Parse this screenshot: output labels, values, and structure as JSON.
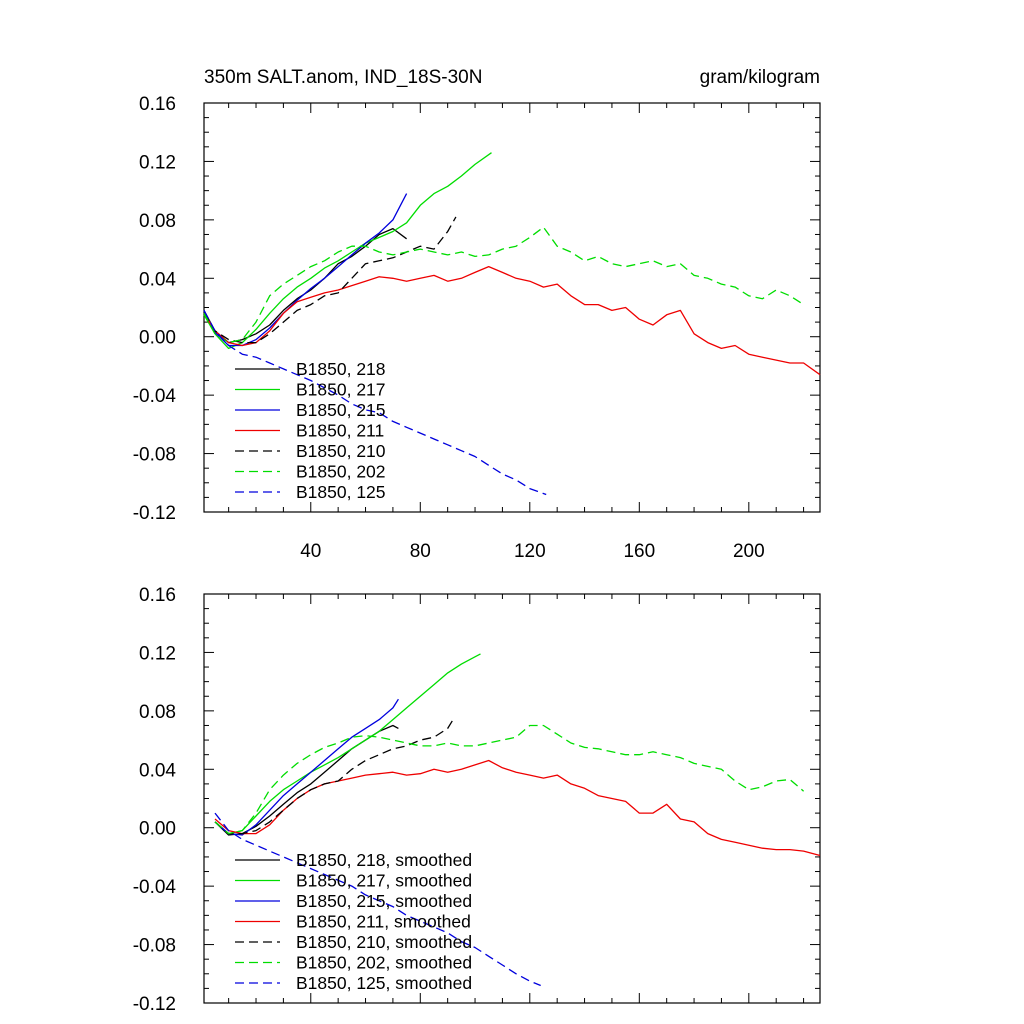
{
  "chart_data": [
    {
      "type": "line",
      "title": "350m SALT.anom, IND_18S-30N",
      "units": "gram/kilogram",
      "xlim": [
        1,
        226
      ],
      "ylim": [
        -0.12,
        0.16
      ],
      "xticks": [
        40,
        80,
        120,
        160,
        200
      ],
      "yticks": [
        "0.16",
        "0.12",
        "0.08",
        "0.04",
        "0.00",
        "-0.04",
        "-0.08",
        "-0.12"
      ],
      "legend_position": "bottom-left",
      "series": [
        {
          "name": "B1850, 218",
          "color": "#000000",
          "dashed": false,
          "x": [
            1,
            5,
            10,
            15,
            20,
            25,
            30,
            35,
            40,
            45,
            50,
            55,
            60,
            65,
            70,
            75
          ],
          "y": [
            0.018,
            0.004,
            -0.004,
            -0.002,
            0.002,
            0.008,
            0.018,
            0.026,
            0.032,
            0.04,
            0.05,
            0.055,
            0.062,
            0.07,
            0.074,
            0.067
          ]
        },
        {
          "name": "B1850, 217",
          "color": "#00dd00",
          "dashed": false,
          "x": [
            1,
            5,
            10,
            15,
            20,
            25,
            30,
            35,
            40,
            45,
            50,
            55,
            60,
            65,
            70,
            75,
            80,
            85,
            90,
            95,
            100,
            106
          ],
          "y": [
            0.015,
            0.002,
            -0.008,
            -0.004,
            0.005,
            0.016,
            0.026,
            0.034,
            0.04,
            0.047,
            0.052,
            0.058,
            0.064,
            0.068,
            0.072,
            0.078,
            0.09,
            0.098,
            0.103,
            0.11,
            0.118,
            0.126
          ]
        },
        {
          "name": "B1850, 215",
          "color": "#0000dd",
          "dashed": false,
          "x": [
            1,
            5,
            10,
            15,
            20,
            25,
            30,
            35,
            40,
            45,
            50,
            55,
            60,
            65,
            70,
            75
          ],
          "y": [
            0.018,
            0.003,
            -0.006,
            -0.006,
            -0.002,
            0.006,
            0.016,
            0.025,
            0.033,
            0.04,
            0.048,
            0.056,
            0.064,
            0.071,
            0.08,
            0.098
          ]
        },
        {
          "name": "B1850, 211",
          "color": "#ee0000",
          "dashed": false,
          "x": [
            1,
            5,
            10,
            15,
            20,
            25,
            30,
            35,
            40,
            45,
            50,
            55,
            60,
            65,
            70,
            75,
            80,
            85,
            90,
            95,
            100,
            105,
            110,
            115,
            120,
            125,
            130,
            135,
            140,
            145,
            150,
            155,
            160,
            165,
            170,
            175,
            180,
            185,
            190,
            195,
            200,
            205,
            210,
            215,
            220,
            226
          ],
          "y": [
            0.016,
            0.004,
            -0.004,
            -0.006,
            -0.004,
            0.004,
            0.016,
            0.024,
            0.027,
            0.03,
            0.032,
            0.035,
            0.038,
            0.041,
            0.04,
            0.038,
            0.04,
            0.042,
            0.038,
            0.04,
            0.044,
            0.048,
            0.044,
            0.04,
            0.038,
            0.034,
            0.036,
            0.028,
            0.022,
            0.022,
            0.018,
            0.02,
            0.012,
            0.008,
            0.015,
            0.018,
            0.002,
            -0.004,
            -0.008,
            -0.006,
            -0.012,
            -0.014,
            -0.016,
            -0.018,
            -0.018,
            -0.026
          ]
        },
        {
          "name": "B1850, 210",
          "color": "#000000",
          "dashed": true,
          "x": [
            1,
            5,
            10,
            15,
            20,
            25,
            30,
            35,
            40,
            45,
            50,
            55,
            60,
            65,
            70,
            75,
            80,
            85,
            90,
            93
          ],
          "y": [
            0.016,
            0.004,
            -0.002,
            -0.004,
            -0.004,
            0.002,
            0.01,
            0.018,
            0.022,
            0.028,
            0.03,
            0.04,
            0.05,
            0.052,
            0.054,
            0.058,
            0.062,
            0.06,
            0.072,
            0.082
          ]
        },
        {
          "name": "B1850, 202",
          "color": "#00dd00",
          "dashed": true,
          "x": [
            1,
            5,
            10,
            15,
            20,
            25,
            30,
            35,
            40,
            45,
            50,
            55,
            60,
            65,
            70,
            75,
            80,
            85,
            90,
            95,
            100,
            105,
            110,
            115,
            120,
            125,
            130,
            135,
            140,
            145,
            150,
            155,
            160,
            165,
            170,
            175,
            180,
            185,
            190,
            195,
            200,
            205,
            210,
            215,
            220
          ],
          "y": [
            0.016,
            0.002,
            -0.004,
            -0.002,
            0.01,
            0.028,
            0.036,
            0.042,
            0.048,
            0.052,
            0.058,
            0.062,
            0.062,
            0.058,
            0.056,
            0.058,
            0.06,
            0.058,
            0.056,
            0.058,
            0.055,
            0.056,
            0.06,
            0.062,
            0.068,
            0.075,
            0.062,
            0.058,
            0.052,
            0.055,
            0.05,
            0.048,
            0.05,
            0.052,
            0.048,
            0.05,
            0.042,
            0.04,
            0.036,
            0.034,
            0.028,
            0.026,
            0.032,
            0.028,
            0.022
          ]
        },
        {
          "name": "B1850, 125",
          "color": "#0000dd",
          "dashed": true,
          "x": [
            1,
            5,
            10,
            15,
            20,
            25,
            30,
            35,
            40,
            45,
            50,
            55,
            60,
            65,
            70,
            75,
            80,
            85,
            90,
            95,
            100,
            105,
            110,
            115,
            120,
            126
          ],
          "y": [
            0.018,
            0.004,
            -0.006,
            -0.012,
            -0.014,
            -0.018,
            -0.022,
            -0.026,
            -0.03,
            -0.035,
            -0.04,
            -0.046,
            -0.05,
            -0.052,
            -0.058,
            -0.062,
            -0.066,
            -0.07,
            -0.074,
            -0.078,
            -0.082,
            -0.088,
            -0.094,
            -0.098,
            -0.104,
            -0.108
          ]
        }
      ]
    },
    {
      "type": "line",
      "title": "",
      "units": "",
      "xlim": [
        1,
        226
      ],
      "ylim": [
        -0.12,
        0.16
      ],
      "xticks": [
        40,
        80,
        120,
        160,
        200
      ],
      "yticks": [
        "0.16",
        "0.12",
        "0.08",
        "0.04",
        "0.00",
        "-0.04",
        "-0.08",
        "-0.12"
      ],
      "legend_position": "bottom-left",
      "series": [
        {
          "name": "B1850, 218, smoothed",
          "color": "#000000",
          "dashed": false,
          "x": [
            5,
            10,
            15,
            20,
            25,
            30,
            35,
            40,
            45,
            50,
            55,
            60,
            65,
            70,
            72
          ],
          "y": [
            0.004,
            -0.005,
            -0.004,
            0.001,
            0.008,
            0.016,
            0.024,
            0.03,
            0.038,
            0.046,
            0.054,
            0.06,
            0.066,
            0.07,
            0.068
          ]
        },
        {
          "name": "B1850, 217, smoothed",
          "color": "#00dd00",
          "dashed": false,
          "x": [
            5,
            10,
            15,
            20,
            25,
            30,
            35,
            40,
            45,
            50,
            55,
            60,
            65,
            70,
            75,
            80,
            85,
            90,
            95,
            100,
            102
          ],
          "y": [
            0.004,
            -0.004,
            -0.002,
            0.008,
            0.018,
            0.026,
            0.032,
            0.038,
            0.043,
            0.048,
            0.054,
            0.06,
            0.066,
            0.074,
            0.082,
            0.09,
            0.098,
            0.106,
            0.112,
            0.117,
            0.119
          ]
        },
        {
          "name": "B1850, 215, smoothed",
          "color": "#0000dd",
          "dashed": false,
          "x": [
            5,
            10,
            15,
            20,
            25,
            30,
            35,
            40,
            45,
            50,
            55,
            60,
            65,
            70,
            72
          ],
          "y": [
            0.004,
            -0.004,
            -0.005,
            0.002,
            0.012,
            0.022,
            0.03,
            0.038,
            0.046,
            0.054,
            0.062,
            0.068,
            0.074,
            0.082,
            0.088
          ]
        },
        {
          "name": "B1850, 211, smoothed",
          "color": "#ee0000",
          "dashed": false,
          "x": [
            5,
            10,
            15,
            20,
            25,
            30,
            35,
            40,
            45,
            50,
            55,
            60,
            65,
            70,
            75,
            80,
            85,
            90,
            95,
            100,
            105,
            110,
            115,
            120,
            125,
            130,
            135,
            140,
            145,
            150,
            155,
            160,
            165,
            170,
            175,
            180,
            185,
            190,
            195,
            200,
            205,
            210,
            215,
            220,
            226
          ],
          "y": [
            0.006,
            -0.002,
            -0.004,
            -0.004,
            0.002,
            0.012,
            0.02,
            0.026,
            0.03,
            0.032,
            0.034,
            0.036,
            0.037,
            0.038,
            0.036,
            0.037,
            0.04,
            0.038,
            0.04,
            0.043,
            0.046,
            0.041,
            0.038,
            0.036,
            0.034,
            0.036,
            0.03,
            0.027,
            0.022,
            0.02,
            0.018,
            0.01,
            0.01,
            0.016,
            0.006,
            0.004,
            -0.004,
            -0.008,
            -0.01,
            -0.012,
            -0.014,
            -0.015,
            -0.015,
            -0.016,
            -0.019
          ]
        },
        {
          "name": "B1850, 210, smoothed",
          "color": "#000000",
          "dashed": true,
          "x": [
            5,
            10,
            15,
            20,
            25,
            30,
            35,
            40,
            45,
            50,
            55,
            60,
            65,
            70,
            75,
            80,
            85,
            90,
            92
          ],
          "y": [
            0.004,
            -0.004,
            -0.004,
            -0.002,
            0.004,
            0.012,
            0.02,
            0.026,
            0.03,
            0.032,
            0.04,
            0.046,
            0.05,
            0.054,
            0.056,
            0.06,
            0.062,
            0.068,
            0.074
          ]
        },
        {
          "name": "B1850, 202, smoothed",
          "color": "#00dd00",
          "dashed": true,
          "x": [
            5,
            10,
            15,
            20,
            25,
            30,
            35,
            40,
            45,
            50,
            55,
            60,
            65,
            70,
            75,
            80,
            85,
            90,
            95,
            100,
            105,
            110,
            115,
            120,
            125,
            130,
            135,
            140,
            145,
            150,
            155,
            160,
            165,
            170,
            175,
            180,
            185,
            190,
            195,
            200,
            205,
            210,
            215,
            220
          ],
          "y": [
            0.004,
            -0.004,
            -0.002,
            0.01,
            0.026,
            0.036,
            0.044,
            0.05,
            0.055,
            0.058,
            0.062,
            0.063,
            0.062,
            0.06,
            0.058,
            0.056,
            0.056,
            0.058,
            0.056,
            0.056,
            0.058,
            0.06,
            0.062,
            0.07,
            0.07,
            0.064,
            0.058,
            0.055,
            0.054,
            0.052,
            0.05,
            0.05,
            0.052,
            0.05,
            0.048,
            0.044,
            0.042,
            0.04,
            0.032,
            0.026,
            0.028,
            0.032,
            0.033,
            0.025
          ]
        },
        {
          "name": "B1850, 125, smoothed",
          "color": "#0000dd",
          "dashed": true,
          "x": [
            5,
            10,
            15,
            20,
            25,
            30,
            35,
            40,
            45,
            50,
            55,
            60,
            65,
            70,
            75,
            80,
            85,
            90,
            95,
            100,
            105,
            110,
            115,
            120,
            124
          ],
          "y": [
            0.01,
            -0.002,
            -0.008,
            -0.012,
            -0.016,
            -0.02,
            -0.024,
            -0.028,
            -0.032,
            -0.036,
            -0.04,
            -0.046,
            -0.05,
            -0.054,
            -0.06,
            -0.064,
            -0.068,
            -0.072,
            -0.078,
            -0.082,
            -0.088,
            -0.094,
            -0.1,
            -0.105,
            -0.108
          ]
        }
      ]
    }
  ]
}
